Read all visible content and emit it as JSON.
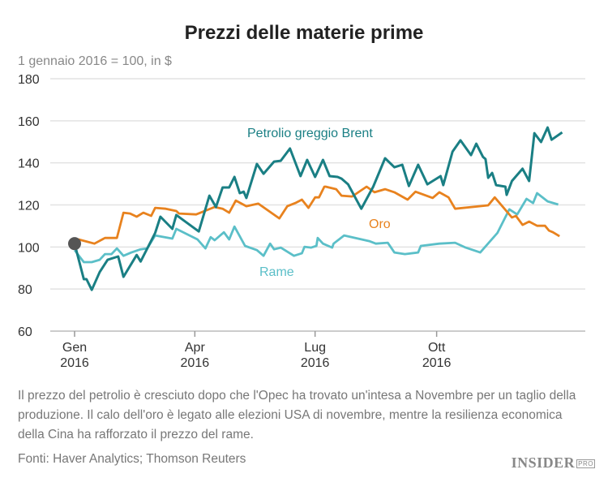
{
  "chart_data": {
    "type": "line",
    "title": "Prezzi delle materie prime",
    "subtitle": "1 gennaio 2016 = 100, in $",
    "xlabel": "",
    "ylabel": "",
    "x_unit": "day of 2016",
    "ylim": [
      60,
      180
    ],
    "yticks": [
      60,
      80,
      100,
      120,
      140,
      160,
      180
    ],
    "xticks": [
      {
        "day": 0,
        "label": [
          "Gen",
          "2016"
        ]
      },
      {
        "day": 91,
        "label": [
          "Apr",
          "2016"
        ]
      },
      {
        "day": 182,
        "label": [
          "Lug",
          "2016"
        ]
      },
      {
        "day": 274,
        "label": [
          "Ott",
          "2016"
        ]
      }
    ],
    "grid": true,
    "start_marker": {
      "day": 0,
      "value": 101.6
    },
    "series": [
      {
        "name": "Petrolio greggio Brent",
        "color": "#1a7f84",
        "points": [
          [
            0,
            101.6
          ],
          [
            7,
            84.7
          ],
          [
            9,
            84.7
          ],
          [
            13,
            79.6
          ],
          [
            19,
            88.1
          ],
          [
            25,
            93.9
          ],
          [
            33,
            95.5
          ],
          [
            37,
            85.8
          ],
          [
            47,
            96.2
          ],
          [
            50,
            93.1
          ],
          [
            61,
            106.7
          ],
          [
            65,
            114.4
          ],
          [
            74,
            108.6
          ],
          [
            77,
            115.2
          ],
          [
            94,
            107.4
          ],
          [
            102,
            124.4
          ],
          [
            107,
            119.0
          ],
          [
            112,
            128.3
          ],
          [
            117,
            128.3
          ],
          [
            121,
            133.3
          ],
          [
            125,
            125.6
          ],
          [
            128,
            126.3
          ],
          [
            130,
            123.3
          ],
          [
            138,
            139.5
          ],
          [
            143,
            134.8
          ],
          [
            151,
            140.6
          ],
          [
            156,
            141.0
          ],
          [
            163,
            146.8
          ],
          [
            171,
            133.7
          ],
          [
            176,
            141.4
          ],
          [
            182,
            133.3
          ],
          [
            188,
            141.4
          ],
          [
            193,
            133.7
          ],
          [
            199,
            133.3
          ],
          [
            202,
            132.5
          ],
          [
            207,
            129.8
          ],
          [
            217,
            118.2
          ],
          [
            226,
            128.7
          ],
          [
            235,
            142.2
          ],
          [
            242,
            137.9
          ],
          [
            248,
            139.1
          ],
          [
            253,
            129.0
          ],
          [
            260,
            139.1
          ],
          [
            267,
            129.8
          ],
          [
            277,
            133.7
          ],
          [
            279,
            129.4
          ],
          [
            286,
            145.3
          ],
          [
            292,
            150.7
          ],
          [
            300,
            143.7
          ],
          [
            304,
            149.1
          ],
          [
            309,
            142.9
          ],
          [
            311,
            141.8
          ],
          [
            313,
            132.9
          ],
          [
            316,
            135.2
          ],
          [
            319,
            129.4
          ],
          [
            326,
            128.7
          ],
          [
            327,
            124.8
          ],
          [
            331,
            131.4
          ],
          [
            339,
            137.2
          ],
          [
            344,
            131.4
          ],
          [
            348,
            154.1
          ],
          [
            353,
            149.9
          ],
          [
            358,
            156.8
          ],
          [
            361,
            151.0
          ],
          [
            369,
            154.5
          ]
        ]
      },
      {
        "name": "Oro",
        "color": "#e8821e",
        "points": [
          [
            0,
            101.6
          ],
          [
            3,
            103.6
          ],
          [
            15,
            101.6
          ],
          [
            23,
            104.3
          ],
          [
            32,
            104.3
          ],
          [
            37,
            116.3
          ],
          [
            42,
            115.9
          ],
          [
            47,
            114.4
          ],
          [
            52,
            116.3
          ],
          [
            58,
            114.8
          ],
          [
            61,
            118.6
          ],
          [
            69,
            118.2
          ],
          [
            77,
            117.1
          ],
          [
            79,
            115.9
          ],
          [
            92,
            115.5
          ],
          [
            106,
            119.0
          ],
          [
            112,
            118.2
          ],
          [
            117,
            116.3
          ],
          [
            122,
            122.1
          ],
          [
            130,
            119.4
          ],
          [
            139,
            120.6
          ],
          [
            155,
            113.6
          ],
          [
            161,
            119.4
          ],
          [
            167,
            120.9
          ],
          [
            172,
            122.5
          ],
          [
            177,
            118.6
          ],
          [
            182,
            123.6
          ],
          [
            185,
            123.6
          ],
          [
            189,
            128.7
          ],
          [
            190,
            128.7
          ],
          [
            198,
            127.5
          ],
          [
            202,
            124.4
          ],
          [
            210,
            124.0
          ],
          [
            221,
            128.7
          ],
          [
            227,
            126.0
          ],
          [
            235,
            127.5
          ],
          [
            242,
            126.0
          ],
          [
            252,
            122.5
          ],
          [
            258,
            126.3
          ],
          [
            271,
            123.3
          ],
          [
            276,
            126.0
          ],
          [
            283,
            123.6
          ],
          [
            288,
            118.2
          ],
          [
            313,
            119.8
          ],
          [
            318,
            123.6
          ],
          [
            331,
            114.0
          ],
          [
            334,
            114.8
          ],
          [
            339,
            110.5
          ],
          [
            344,
            112.1
          ],
          [
            350,
            110.1
          ],
          [
            356,
            110.1
          ],
          [
            359,
            107.8
          ],
          [
            362,
            107.0
          ],
          [
            367,
            105.1
          ]
        ]
      },
      {
        "name": "Rame",
        "color": "#5bbfc8",
        "points": [
          [
            0,
            98.5
          ],
          [
            7,
            92.8
          ],
          [
            13,
            92.8
          ],
          [
            19,
            93.9
          ],
          [
            23,
            96.6
          ],
          [
            28,
            96.6
          ],
          [
            32,
            99.3
          ],
          [
            37,
            95.8
          ],
          [
            43,
            97.4
          ],
          [
            50,
            98.9
          ],
          [
            55,
            99.3
          ],
          [
            61,
            105.5
          ],
          [
            74,
            104.0
          ],
          [
            77,
            108.6
          ],
          [
            93,
            103.6
          ],
          [
            99,
            99.3
          ],
          [
            103,
            104.7
          ],
          [
            106,
            103.2
          ],
          [
            113,
            107.0
          ],
          [
            117,
            103.6
          ],
          [
            121,
            109.7
          ],
          [
            129,
            100.5
          ],
          [
            138,
            98.5
          ],
          [
            143,
            95.8
          ],
          [
            148,
            101.6
          ],
          [
            151,
            98.9
          ],
          [
            156,
            99.7
          ],
          [
            166,
            95.8
          ],
          [
            172,
            97.0
          ],
          [
            174,
            100.1
          ],
          [
            179,
            99.7
          ],
          [
            183,
            100.5
          ],
          [
            184,
            104.3
          ],
          [
            188,
            101.6
          ],
          [
            195,
            99.7
          ],
          [
            196,
            101.6
          ],
          [
            204,
            105.5
          ],
          [
            223,
            102.8
          ],
          [
            228,
            101.6
          ],
          [
            237,
            102.0
          ],
          [
            242,
            97.4
          ],
          [
            250,
            96.6
          ],
          [
            260,
            97.4
          ],
          [
            262,
            100.5
          ],
          [
            276,
            101.6
          ],
          [
            288,
            102.0
          ],
          [
            296,
            99.7
          ],
          [
            307,
            97.4
          ],
          [
            320,
            106.7
          ],
          [
            329,
            117.9
          ],
          [
            335,
            115.5
          ],
          [
            342,
            122.9
          ],
          [
            347,
            120.9
          ],
          [
            350,
            125.6
          ],
          [
            358,
            121.7
          ],
          [
            366,
            120.2
          ]
        ]
      }
    ],
    "annotations": [
      "Petrolio greggio Brent",
      "Oro",
      "Rame"
    ]
  },
  "footnote": "Il prezzo del petrolio è cresciuto dopo che l'Opec ha trovato un'intesa a Novembre per un taglio della produzione. Il calo dell'oro è legato alle elezioni USA di novembre, mentre la resilienza economica della Cina ha rafforzato il prezzo del rame.",
  "sources": "Fonti:  Haver Analytics; Thomson Reuters",
  "logo": {
    "text": "INSIDER",
    "badge": "PRO"
  }
}
